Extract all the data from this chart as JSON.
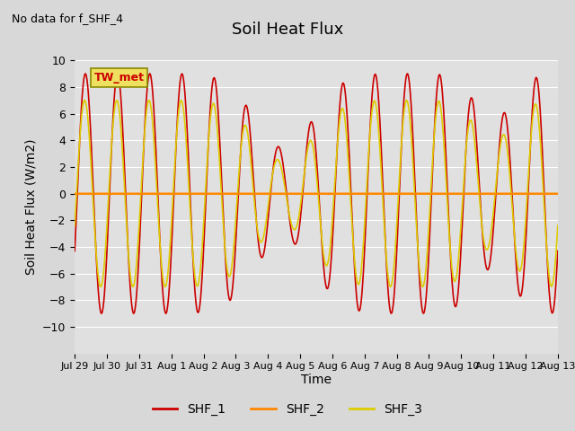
{
  "title": "Soil Heat Flux",
  "no_data_text": "No data for f_SHF_4",
  "tw_met_label": "TW_met",
  "xlabel": "Time",
  "ylabel": "Soil Heat Flux (W/m2)",
  "ylim": [
    -12,
    10
  ],
  "yticks": [
    -10,
    -8,
    -6,
    -4,
    -2,
    0,
    2,
    4,
    6,
    8,
    10
  ],
  "xtick_labels": [
    "Jul 29",
    "Jul 30",
    "Jul 31",
    "Aug 1",
    "Aug 2",
    "Aug 3",
    "Aug 4",
    "Aug 5",
    "Aug 6",
    "Aug 7",
    "Aug 8",
    "Aug 9",
    "Aug 10",
    "Aug 11",
    "Aug 12",
    "Aug 13"
  ],
  "bg_color": "#d8d8d8",
  "plot_bg_color": "#e0e0e0",
  "line_colors": {
    "SHF_1": "#cc0000",
    "SHF_2": "#ff8800",
    "SHF_3": "#ddcc00"
  },
  "zero_line_color": "#ff8800",
  "legend_entries": [
    "SHF_1",
    "SHF_2",
    "SHF_3"
  ],
  "n_days": 15
}
